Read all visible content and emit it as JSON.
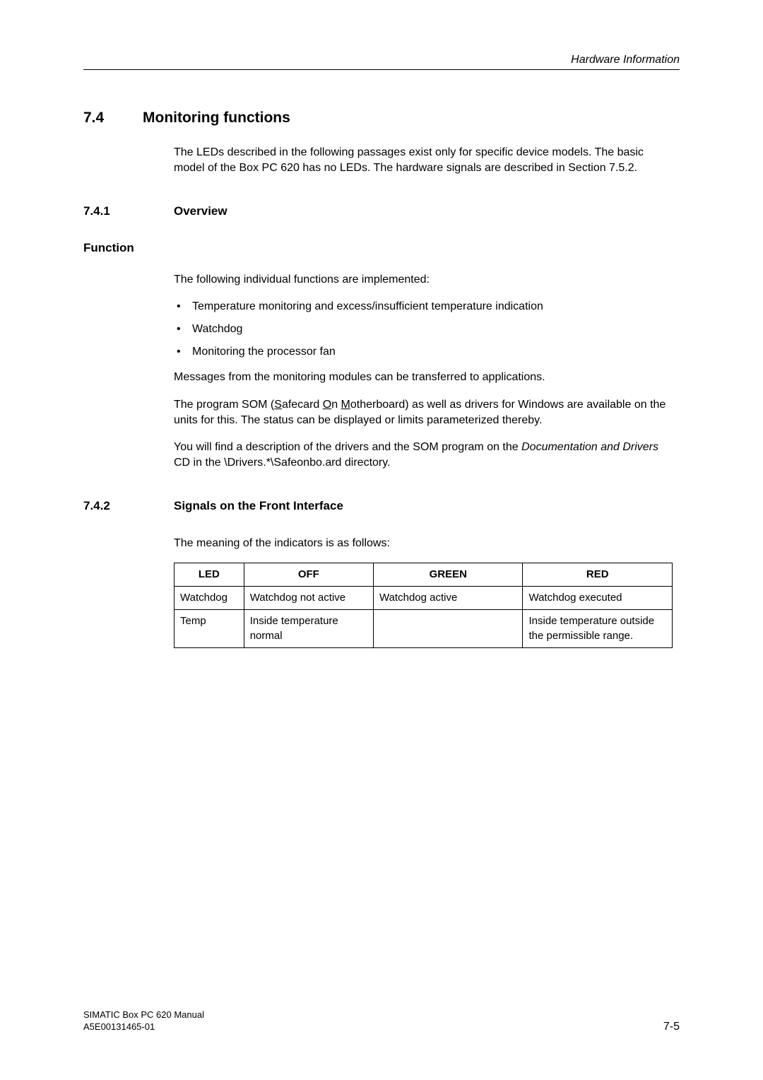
{
  "header": {
    "running_title": "Hardware Information"
  },
  "section": {
    "num": "7.4",
    "title": "Monitoring functions",
    "intro": "The LEDs described in the following passages exist only for specific device models.  The basic model of the Box PC 620 has no LEDs. The hardware signals are described in Section 7.5.2."
  },
  "s741": {
    "num": "7.4.1",
    "title": "Overview",
    "func_heading": "Function",
    "func_intro": "The following individual functions are implemented:",
    "bullets": [
      "Temperature monitoring and excess/insufficient temperature indication",
      "Watchdog",
      "Monitoring the processor fan"
    ],
    "p_messages": "Messages from the monitoring modules can be transferred to applications.",
    "som_pre": "The program SOM (",
    "som_s": "S",
    "som_afecard": "afecard ",
    "som_o": "O",
    "som_n": "n ",
    "som_m": "M",
    "som_rest": "otherboard) as well as drivers for Windows are available on the units for this. The status can be displayed or limits parameterized thereby.",
    "p_drivers_1": "You will find a description of the drivers and the SOM program on the ",
    "p_drivers_em": "Documentation and Drivers",
    "p_drivers_2": " CD in the \\Drivers.*\\Safeonbo.ard directory."
  },
  "s742": {
    "num": "7.4.2",
    "title": "Signals on the Front Interface",
    "intro": "The meaning of the indicators is as follows:",
    "table": {
      "headers": [
        "LED",
        "OFF",
        "GREEN",
        "RED"
      ],
      "rows": [
        [
          "Watchdog",
          "Watchdog not active",
          "Watchdog active",
          "Watchdog executed"
        ],
        [
          "Temp",
          "Inside temperature normal",
          "",
          "Inside temperature outside the permissible range."
        ]
      ]
    }
  },
  "footer": {
    "line1": "SIMATIC Box PC 620  Manual",
    "line2": "A5E00131465-01",
    "page": "7-5"
  },
  "colors": {
    "text": "#000000",
    "bg": "#ffffff",
    "rule": "#000000"
  }
}
